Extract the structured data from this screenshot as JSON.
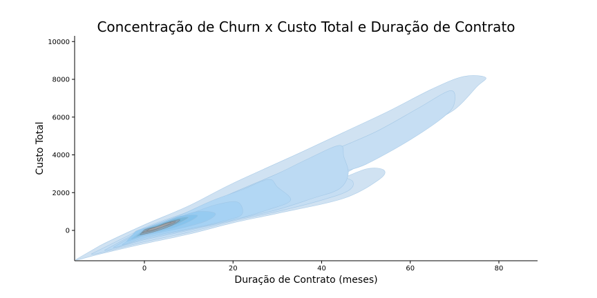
{
  "chart_data": {
    "type": "kde-contour",
    "title": "Concentração de Churn x Custo Total e Duração de Contrato",
    "xlabel": "Duração de Contrato (meses)",
    "ylabel": "Custo Total",
    "xlim": [
      -16,
      89
    ],
    "ylim": [
      -1600,
      10300
    ],
    "xticks": [
      0,
      20,
      40,
      60,
      80
    ],
    "yticks": [
      0,
      2000,
      4000,
      6000,
      8000,
      10000
    ],
    "grid": false,
    "legend": "none",
    "density_peak": {
      "x": 3,
      "y": 250
    },
    "levels": [
      {
        "level": 1,
        "color": "#d0e2f2",
        "outline": [
          [
            -15.5,
            -1550
          ],
          [
            -10,
            -1250
          ],
          [
            0,
            -700
          ],
          [
            10,
            -200
          ],
          [
            20,
            400
          ],
          [
            30,
            900
          ],
          [
            45,
            1700
          ],
          [
            53,
            2700
          ],
          [
            54,
            3200
          ],
          [
            50,
            3250
          ],
          [
            43,
            2600
          ],
          [
            46,
            3100
          ],
          [
            55,
            4300
          ],
          [
            63,
            5500
          ],
          [
            70,
            6400
          ],
          [
            75,
            7600
          ],
          [
            77,
            8100
          ],
          [
            72,
            8150
          ],
          [
            65,
            7500
          ],
          [
            55,
            6300
          ],
          [
            45,
            5200
          ],
          [
            35,
            4100
          ],
          [
            20,
            2500
          ],
          [
            10,
            1300
          ],
          [
            0,
            300
          ],
          [
            -10,
            -800
          ],
          [
            -15.5,
            -1550
          ]
        ]
      },
      {
        "level": 2,
        "color": "#c6def3",
        "outline": [
          [
            -12,
            -1250
          ],
          [
            0,
            -600
          ],
          [
            10,
            -100
          ],
          [
            20,
            500
          ],
          [
            30,
            1000
          ],
          [
            40,
            1600
          ],
          [
            46,
            2100
          ],
          [
            47,
            2600
          ],
          [
            44,
            3000
          ],
          [
            50,
            3500
          ],
          [
            60,
            4800
          ],
          [
            68,
            6100
          ],
          [
            70,
            6800
          ],
          [
            69,
            7400
          ],
          [
            62,
            6500
          ],
          [
            52,
            5200
          ],
          [
            40,
            4000
          ],
          [
            30,
            3000
          ],
          [
            20,
            2000
          ],
          [
            10,
            1000
          ],
          [
            0,
            150
          ],
          [
            -12,
            -1250
          ]
        ]
      },
      {
        "level": 3,
        "color": "#bcdaf3",
        "outline": [
          [
            -9,
            -1050
          ],
          [
            0,
            -500
          ],
          [
            10,
            0
          ],
          [
            20,
            550
          ],
          [
            30,
            1100
          ],
          [
            38,
            1700
          ],
          [
            44,
            2200
          ],
          [
            46,
            3000
          ],
          [
            45,
            3900
          ],
          [
            44,
            4500
          ],
          [
            37,
            3800
          ],
          [
            30,
            3000
          ],
          [
            20,
            2000
          ],
          [
            10,
            950
          ],
          [
            0,
            100
          ],
          [
            -9,
            -1050
          ]
        ]
      },
      {
        "level": 4,
        "color": "#b2d7f4",
        "outline": [
          [
            -7,
            -900
          ],
          [
            0,
            -450
          ],
          [
            10,
            50
          ],
          [
            20,
            550
          ],
          [
            28,
            1100
          ],
          [
            33,
            1600
          ],
          [
            30,
            2300
          ],
          [
            28,
            2700
          ],
          [
            22,
            2150
          ],
          [
            15,
            1550
          ],
          [
            8,
            800
          ],
          [
            0,
            80
          ],
          [
            -7,
            -900
          ]
        ]
      },
      {
        "level": 5,
        "color": "#a6d2f4",
        "outline": [
          [
            -5,
            -750
          ],
          [
            0,
            -380
          ],
          [
            10,
            80
          ],
          [
            18,
            500
          ],
          [
            22,
            850
          ],
          [
            21,
            1500
          ],
          [
            16,
            1350
          ],
          [
            10,
            850
          ],
          [
            5,
            450
          ],
          [
            0,
            60
          ],
          [
            -5,
            -750
          ]
        ]
      },
      {
        "level": 6,
        "color": "#96cbf1",
        "outline": [
          [
            -4,
            -580
          ],
          [
            0,
            -290
          ],
          [
            8,
            100
          ],
          [
            14,
            500
          ],
          [
            16,
            900
          ],
          [
            12,
            1000
          ],
          [
            7,
            650
          ],
          [
            2,
            250
          ],
          [
            -2,
            -50
          ],
          [
            -4,
            -580
          ]
        ]
      },
      {
        "level": 7,
        "color": "#86c3ec",
        "outline": [
          [
            -3,
            -450
          ],
          [
            0,
            -240
          ],
          [
            6,
            100
          ],
          [
            10,
            450
          ],
          [
            12,
            800
          ],
          [
            8,
            750
          ],
          [
            4,
            400
          ],
          [
            0,
            80
          ],
          [
            -3,
            -450
          ]
        ]
      },
      {
        "level": 8,
        "color": "#7ab7da",
        "outline": [
          [
            -2,
            -330
          ],
          [
            1,
            -150
          ],
          [
            5,
            120
          ],
          [
            8,
            400
          ],
          [
            10,
            700
          ],
          [
            7,
            620
          ],
          [
            3,
            300
          ],
          [
            0,
            50
          ],
          [
            -2,
            -330
          ]
        ]
      },
      {
        "level": 9,
        "color": "#8aa5b8",
        "outline": [
          [
            -1,
            -220
          ],
          [
            2,
            -80
          ],
          [
            5,
            150
          ],
          [
            7,
            370
          ],
          [
            8,
            560
          ],
          [
            6,
            470
          ],
          [
            3,
            220
          ],
          [
            0,
            30
          ],
          [
            -1,
            -220
          ]
        ]
      },
      {
        "level": 10,
        "color": "#9b9da2",
        "outline": [
          [
            -0.5,
            -120
          ],
          [
            2,
            0
          ],
          [
            4,
            180
          ],
          [
            6,
            330
          ],
          [
            7,
            470
          ],
          [
            5,
            400
          ],
          [
            3,
            220
          ],
          [
            1,
            70
          ],
          [
            -0.5,
            -120
          ]
        ]
      },
      {
        "level": 11,
        "color": "#a3a3a6",
        "outline": [
          [
            0.5,
            -40
          ],
          [
            2,
            30
          ],
          [
            4,
            180
          ],
          [
            5.5,
            320
          ],
          [
            6,
            420
          ],
          [
            4.5,
            330
          ],
          [
            2.5,
            170
          ],
          [
            1,
            50
          ],
          [
            0.5,
            -40
          ]
        ]
      }
    ]
  }
}
